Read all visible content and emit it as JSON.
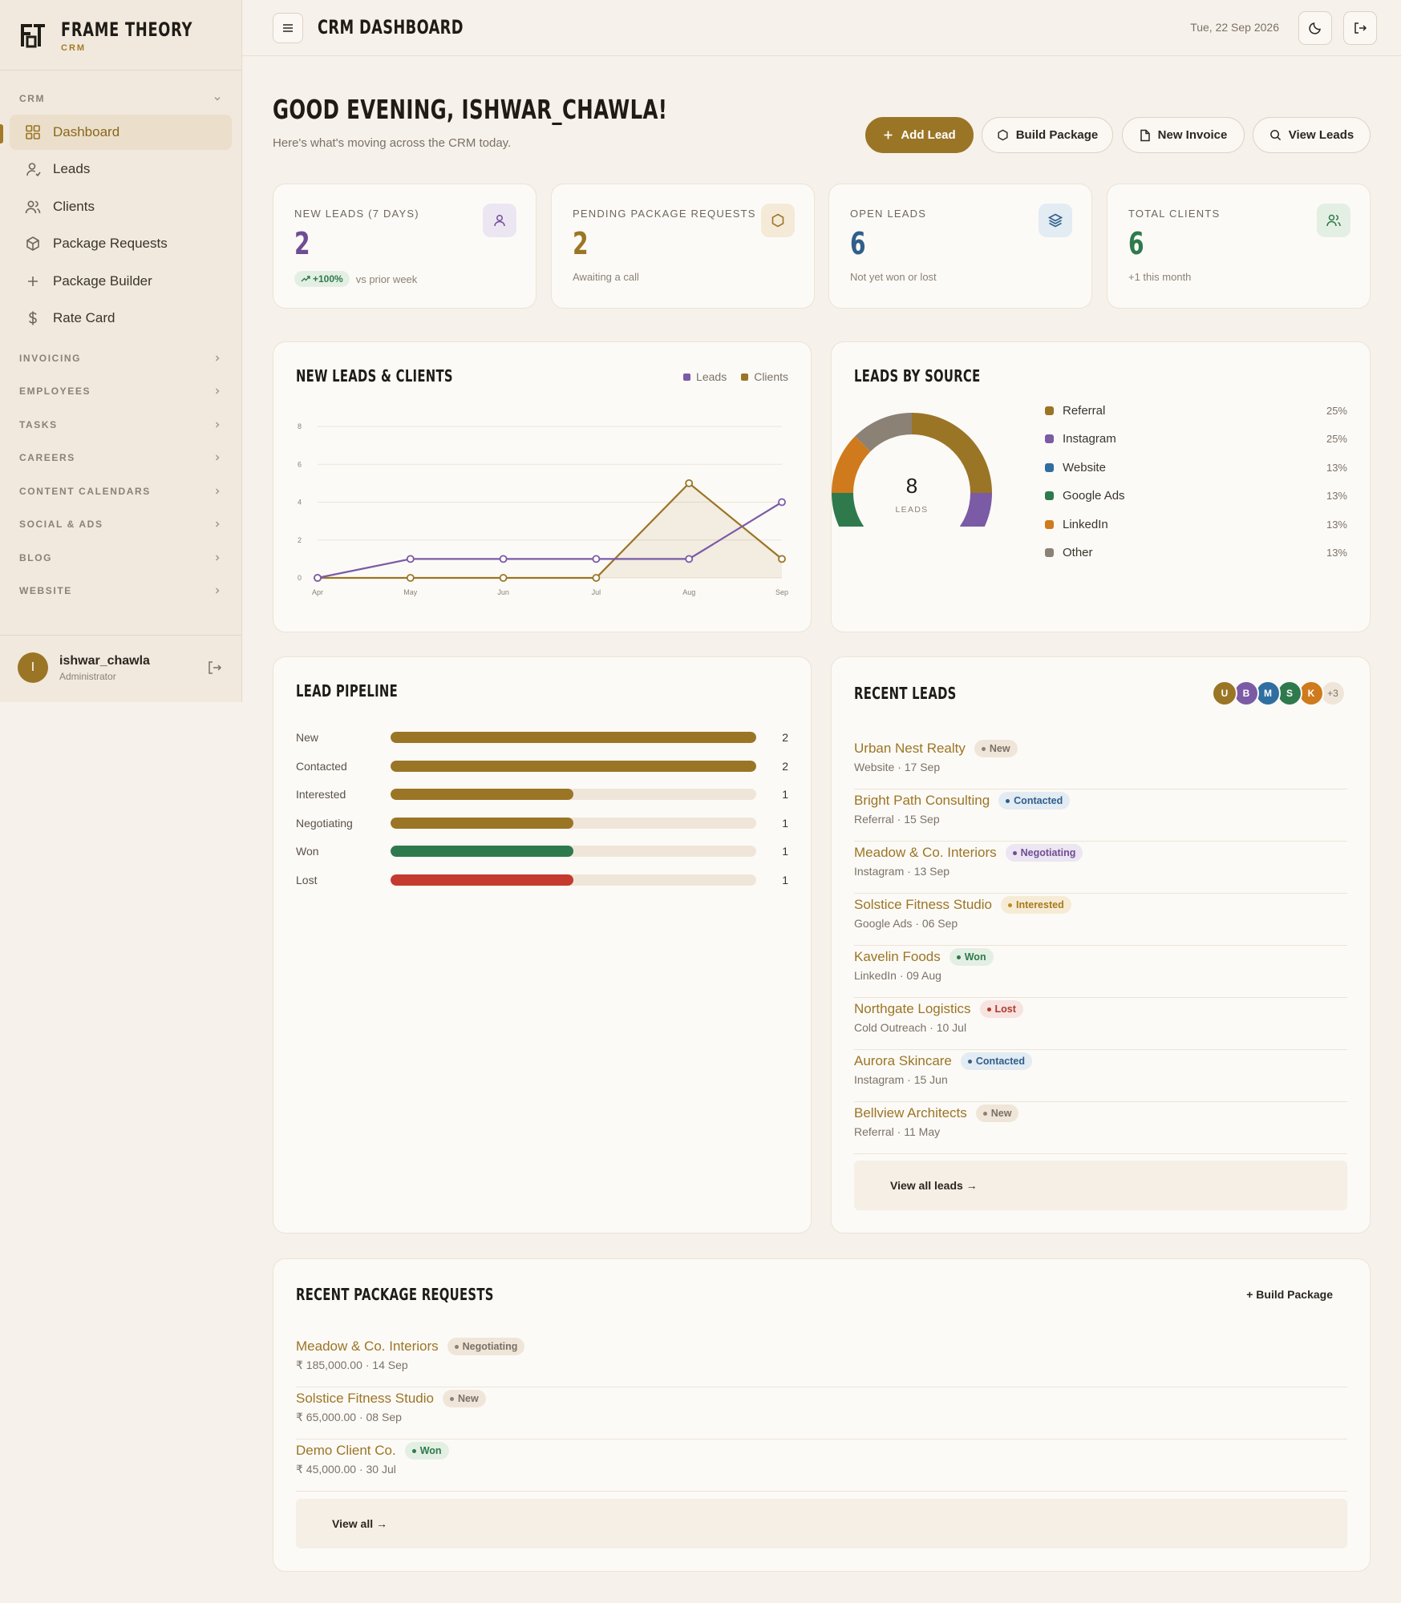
{
  "brand": {
    "name": "FRAME THEORY",
    "sub": "CRM"
  },
  "sidebar": {
    "crm_section": "CRM",
    "items": [
      {
        "label": "Dashboard",
        "icon": "grid-icon",
        "active": true
      },
      {
        "label": "Leads",
        "icon": "user-icon"
      },
      {
        "label": "Clients",
        "icon": "users-icon"
      },
      {
        "label": "Package Requests",
        "icon": "box-icon"
      },
      {
        "label": "Package Builder",
        "icon": "plus-icon"
      },
      {
        "label": "Rate Card",
        "icon": "dollar-icon"
      }
    ],
    "sections": [
      "INVOICING",
      "EMPLOYEES",
      "TASKS",
      "CAREERS",
      "CONTENT CALENDARS",
      "SOCIAL & ADS",
      "BLOG",
      "WEBSITE"
    ],
    "user": {
      "initial": "I",
      "name": "ishwar_chawla",
      "role": "Administrator"
    }
  },
  "topbar": {
    "title": "CRM DASHBOARD",
    "date": "Tue, 22 Sep 2026"
  },
  "header": {
    "greeting": "GOOD EVENING, ISHWAR_CHAWLA!",
    "subtitle": "Here's what's moving across the CRM today.",
    "actions": {
      "add_lead": "Add Lead",
      "build_package": "Build Package",
      "new_invoice": "New Invoice",
      "view_leads": "View Leads"
    }
  },
  "stats": [
    {
      "label": "NEW LEADS (7 DAYS)",
      "value": "2",
      "trend": "+100%",
      "sub": "vs prior week",
      "color": "#6f4d94"
    },
    {
      "label": "PENDING PACKAGE REQUESTS",
      "value": "2",
      "sub": "Awaiting a call",
      "color": "#9b7526"
    },
    {
      "label": "OPEN LEADS",
      "value": "6",
      "sub": "Not yet won or lost",
      "color": "#2f5f8a"
    },
    {
      "label": "TOTAL CLIENTS",
      "value": "6",
      "sub": "+1 this month",
      "color": "#2e7a4d"
    }
  ],
  "leads_chart": {
    "title": "NEW LEADS & CLIENTS",
    "legend": {
      "leads": "Leads",
      "clients": "Clients"
    }
  },
  "chart_data": [
    {
      "type": "line",
      "title": "NEW LEADS & CLIENTS",
      "x": [
        "Apr",
        "May",
        "Jun",
        "Jul",
        "Aug",
        "Sep"
      ],
      "yticks": [
        "0",
        "2",
        "4",
        "6",
        "8"
      ],
      "ylim": [
        0,
        8
      ],
      "grid": true,
      "legend_position": "top-right",
      "series": [
        {
          "name": "Leads",
          "values": [
            0,
            1,
            1,
            1,
            1,
            4
          ],
          "color": "#7b5aa6"
        },
        {
          "name": "Clients",
          "values": [
            0,
            0,
            0,
            0,
            5,
            1
          ],
          "color": "#9b7526",
          "area": true
        }
      ]
    },
    {
      "type": "pie",
      "title": "LEADS BY SOURCE",
      "center_value": "8",
      "center_label": "LEADS",
      "labels": [
        "Referral",
        "Instagram",
        "Website",
        "Google Ads",
        "LinkedIn",
        "Other"
      ],
      "values": [
        25,
        25,
        12.5,
        12.5,
        12.5,
        12.5
      ],
      "display": [
        "25%",
        "25%",
        "13%",
        "13%",
        "13%",
        "13%"
      ],
      "colors": [
        "#9b7526",
        "#7b5aa6",
        "#2f6ea1",
        "#2e7a4d",
        "#cf7a1d",
        "#8b8175"
      ]
    }
  ],
  "pipeline": {
    "title": "LEAD PIPELINE",
    "max": 2,
    "rows": [
      {
        "label": "New",
        "count": 2,
        "color": "#9b7526"
      },
      {
        "label": "Contacted",
        "count": 2,
        "color": "#9b7526"
      },
      {
        "label": "Interested",
        "count": 1,
        "color": "#9b7526"
      },
      {
        "label": "Negotiating",
        "count": 1,
        "color": "#9b7526"
      },
      {
        "label": "Won",
        "count": 1,
        "color": "#2e7a4d"
      },
      {
        "label": "Lost",
        "count": 1,
        "color": "#c53a2e"
      }
    ]
  },
  "recent_leads": {
    "title": "RECENT LEADS",
    "avatars": [
      {
        "initial": "U",
        "color": "#9b7526"
      },
      {
        "initial": "B",
        "color": "#7b5aa6"
      },
      {
        "initial": "M",
        "color": "#2f6ea1"
      },
      {
        "initial": "S",
        "color": "#2e7a4d"
      },
      {
        "initial": "K",
        "color": "#cf7a1d"
      }
    ],
    "more": "+3",
    "items": [
      {
        "name": "Urban Nest Realty",
        "status": "New",
        "meta": "Website · 17 Sep",
        "kind": "new"
      },
      {
        "name": "Bright Path Consulting",
        "status": "Contacted",
        "meta": "Referral · 15 Sep",
        "kind": "contacted"
      },
      {
        "name": "Meadow & Co. Interiors",
        "status": "Negotiating",
        "meta": "Instagram · 13 Sep",
        "kind": "negotiating"
      },
      {
        "name": "Solstice Fitness Studio",
        "status": "Interested",
        "meta": "Google Ads · 06 Sep",
        "kind": "interested"
      },
      {
        "name": "Kavelin Foods",
        "status": "Won",
        "meta": "LinkedIn · 09 Aug",
        "kind": "won"
      },
      {
        "name": "Northgate Logistics",
        "status": "Lost",
        "meta": "Cold Outreach · 10 Jul",
        "kind": "lost"
      },
      {
        "name": "Aurora Skincare",
        "status": "Contacted",
        "meta": "Instagram · 15 Jun",
        "kind": "contacted"
      },
      {
        "name": "Bellview Architects",
        "status": "New",
        "meta": "Referral · 11 May",
        "kind": "new"
      }
    ],
    "view_all": "View all leads →"
  },
  "package_requests": {
    "title": "RECENT PACKAGE REQUESTS",
    "build_label": "+ Build Package",
    "items": [
      {
        "name": "Meadow & Co. Interiors",
        "status": "Negotiating",
        "meta": "₹ 185,000.00 · 14 Sep",
        "kind": "new"
      },
      {
        "name": "Solstice Fitness Studio",
        "status": "New",
        "meta": "₹ 65,000.00 · 08 Sep",
        "kind": "new"
      },
      {
        "name": "Demo Client Co.",
        "status": "Won",
        "meta": "₹ 45,000.00 · 30 Jul",
        "kind": "won"
      }
    ],
    "view_all": "View all →"
  }
}
